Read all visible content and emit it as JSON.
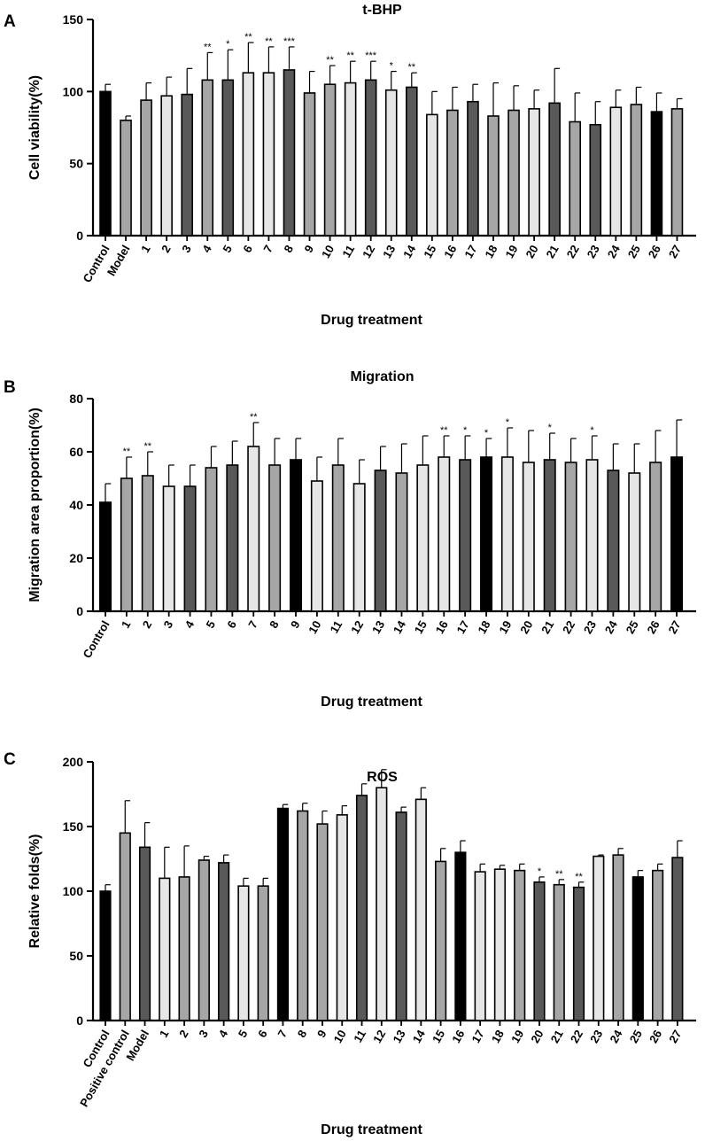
{
  "colors": {
    "black": "#000000",
    "dark": "#595959",
    "medium": "#a6a6a6",
    "light": "#e6e6e6"
  },
  "chart_data": [
    {
      "id": "A",
      "type": "bar",
      "panel": "A",
      "title": "t-BHP",
      "xlabel": "Drug treatment",
      "ylabel": "Cell viability(%)",
      "ylim": [
        0,
        150
      ],
      "yticks": [
        0,
        50,
        100,
        150
      ],
      "categories": [
        "Control",
        "Model",
        "1",
        "2",
        "3",
        "4",
        "5",
        "6",
        "7",
        "8",
        "9",
        "10",
        "11",
        "12",
        "13",
        "14",
        "15",
        "16",
        "17",
        "18",
        "19",
        "20",
        "21",
        "22",
        "23",
        "24",
        "25",
        "26",
        "27"
      ],
      "values": [
        100,
        80,
        94,
        97,
        98,
        108,
        108,
        113,
        113,
        115,
        99,
        105,
        106,
        108,
        101,
        103,
        84,
        87,
        93,
        83,
        87,
        88,
        92,
        79,
        77,
        89,
        91,
        86,
        88
      ],
      "errors": [
        5,
        3,
        12,
        13,
        18,
        19,
        21,
        21,
        18,
        16,
        15,
        13,
        15,
        13,
        13,
        10,
        16,
        16,
        12,
        23,
        17,
        13,
        24,
        20,
        16,
        12,
        12,
        13,
        7
      ],
      "fills": [
        "black",
        "medium",
        "medium",
        "light",
        "dark",
        "medium",
        "dark",
        "light",
        "light",
        "dark",
        "medium",
        "medium",
        "light",
        "dark",
        "light",
        "dark",
        "light",
        "medium",
        "dark",
        "medium",
        "medium",
        "light",
        "dark",
        "medium",
        "dark",
        "light",
        "medium",
        "black",
        "medium"
      ],
      "significance": [
        "",
        "",
        "",
        "",
        "",
        "**",
        "*",
        "**",
        "**",
        "***",
        "",
        "**",
        "**",
        "***",
        "*",
        "**",
        "",
        "",
        "",
        "",
        "",
        "",
        "",
        "",
        "",
        "",
        "",
        "",
        ""
      ]
    },
    {
      "id": "B",
      "type": "bar",
      "panel": "B",
      "title": "Migration",
      "xlabel": "Drug treatment",
      "ylabel": "Migration area proportion(%)",
      "ylim": [
        0,
        80
      ],
      "yticks": [
        0,
        20,
        40,
        60,
        80
      ],
      "categories": [
        "Control",
        "1",
        "2",
        "3",
        "4",
        "5",
        "6",
        "7",
        "8",
        "9",
        "10",
        "11",
        "12",
        "13",
        "14",
        "15",
        "16",
        "17",
        "18",
        "19",
        "20",
        "21",
        "22",
        "23",
        "24",
        "25",
        "26",
        "27"
      ],
      "values": [
        41,
        50,
        51,
        47,
        47,
        54,
        55,
        62,
        55,
        57,
        49,
        55,
        48,
        53,
        52,
        55,
        58,
        57,
        58,
        58,
        56,
        57,
        56,
        57,
        53,
        52,
        56,
        58
      ],
      "errors": [
        7,
        8,
        9,
        8,
        8,
        8,
        9,
        9,
        10,
        8,
        9,
        10,
        9,
        9,
        11,
        11,
        8,
        9,
        7,
        11,
        12,
        10,
        9,
        9,
        10,
        11,
        12,
        14
      ],
      "fills": [
        "black",
        "medium",
        "medium",
        "light",
        "dark",
        "medium",
        "dark",
        "light",
        "medium",
        "black",
        "light",
        "medium",
        "light",
        "dark",
        "medium",
        "light",
        "light",
        "dark",
        "black",
        "light",
        "light",
        "dark",
        "medium",
        "light",
        "dark",
        "light",
        "medium",
        "black"
      ],
      "significance": [
        "",
        "**",
        "**",
        "",
        "",
        "",
        "",
        "**",
        "",
        "",
        "",
        "",
        "",
        "",
        "",
        "",
        "**",
        "*",
        "*",
        "*",
        "",
        "*",
        "",
        "*",
        "",
        "",
        "",
        ""
      ]
    },
    {
      "id": "C",
      "type": "bar",
      "panel": "C",
      "title": "ROS",
      "xlabel": "Drug treatment",
      "ylabel": "Relative folds(%)",
      "ylim": [
        0,
        200
      ],
      "yticks": [
        0,
        50,
        100,
        150,
        200
      ],
      "categories": [
        "Control",
        "Positive control",
        "Model",
        "1",
        "2",
        "3",
        "4",
        "5",
        "6",
        "7",
        "8",
        "9",
        "10",
        "11",
        "12",
        "13",
        "14",
        "15",
        "16",
        "17",
        "18",
        "19",
        "20",
        "21",
        "22",
        "23",
        "24",
        "25",
        "26",
        "27"
      ],
      "values": [
        100,
        145,
        134,
        110,
        111,
        124,
        122,
        104,
        104,
        164,
        162,
        152,
        159,
        174,
        180,
        161,
        171,
        123,
        130,
        115,
        117,
        116,
        107,
        105,
        103,
        127,
        128,
        111,
        116,
        126
      ],
      "errors": [
        5,
        25,
        19,
        24,
        24,
        3,
        6,
        6,
        6,
        3,
        6,
        10,
        7,
        9,
        14,
        4,
        9,
        10,
        9,
        6,
        3,
        5,
        4,
        4,
        4,
        1,
        5,
        5,
        5,
        13
      ],
      "fills": [
        "black",
        "medium",
        "dark",
        "light",
        "medium",
        "medium",
        "dark",
        "light",
        "medium",
        "black",
        "medium",
        "medium",
        "light",
        "dark",
        "light",
        "dark",
        "light",
        "medium",
        "black",
        "light",
        "light",
        "medium",
        "dark",
        "medium",
        "dark",
        "light",
        "medium",
        "black",
        "medium",
        "dark"
      ],
      "significance": [
        "",
        "",
        "",
        "",
        "",
        "",
        "",
        "",
        "",
        "",
        "",
        "",
        "",
        "",
        "",
        "",
        "",
        "",
        "",
        "",
        "",
        "",
        "*",
        "**",
        "**",
        "",
        "",
        "",
        "",
        ""
      ]
    }
  ]
}
